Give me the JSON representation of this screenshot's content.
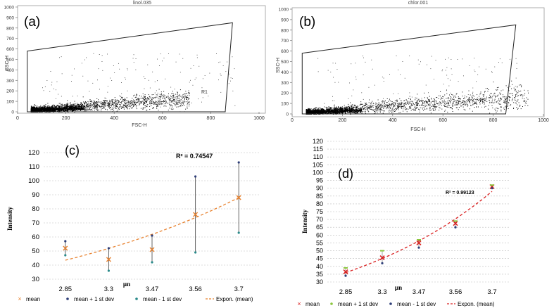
{
  "chart_data": [
    {
      "panel": "a",
      "type": "scatter",
      "panel_label": "(a)",
      "title": "linol.035",
      "xlabel": "FSC-H",
      "ylabel": "SSC-H",
      "xlim": [
        0,
        1000
      ],
      "ylim": [
        0,
        1000
      ],
      "x_ticks": [
        "0",
        "200",
        "400",
        "600",
        "800",
        "1000"
      ],
      "y_ticks": [
        "0",
        "100",
        "200",
        "300",
        "400",
        "500",
        "600",
        "700",
        "800",
        "900",
        "1000"
      ],
      "gate_label": "R1",
      "gate_polygon": [
        [
          40,
          580
        ],
        [
          890,
          850
        ],
        [
          860,
          0
        ],
        [
          40,
          0
        ]
      ]
    },
    {
      "panel": "b",
      "type": "scatter",
      "panel_label": "(b)",
      "title": "chlor.001",
      "xlabel": "FSC-H",
      "ylabel": "SSC-H",
      "xlim": [
        0,
        1000
      ],
      "ylim": [
        0,
        1000
      ],
      "x_ticks": [
        "0",
        "200",
        "400",
        "600",
        "800",
        "1000"
      ],
      "y_ticks": [
        "0",
        "100",
        "200",
        "300",
        "400",
        "500",
        "600",
        "700",
        "800",
        "900",
        "1000"
      ],
      "gate_label": "R1",
      "gate_polygon": [
        [
          40,
          580
        ],
        [
          890,
          850
        ],
        [
          850,
          0
        ],
        [
          40,
          0
        ]
      ]
    },
    {
      "panel": "c",
      "type": "scatter",
      "panel_label": "(c)",
      "xlabel": "µn",
      "ylabel": "Intensity",
      "categories": [
        "2.85",
        "3.3",
        "3.47",
        "3.56",
        "3.7"
      ],
      "ylim": [
        30,
        120
      ],
      "y_ticks": [
        "30",
        "40",
        "50",
        "60",
        "70",
        "80",
        "90",
        "100",
        "110",
        "120"
      ],
      "series": [
        {
          "name": "mean",
          "values": [
            52,
            44,
            51,
            76,
            88
          ],
          "color": "#e8822f"
        },
        {
          "name": "mean + 1 st dev",
          "values": [
            57,
            52,
            61,
            103,
            113
          ],
          "color": "#2e3e78"
        },
        {
          "name": "mean - 1 st dev",
          "values": [
            47,
            36,
            42,
            49,
            63
          ],
          "color": "#2a8a8a"
        }
      ],
      "trendline": {
        "name": "Expon. (mean)",
        "values": [
          43.5,
          50.5,
          59,
          70.5,
          88
        ],
        "color": "#e8822f"
      },
      "annotation": "R² = 0.74547",
      "legend": [
        "mean",
        "mean + 1 st dev",
        "mean - 1 st dev",
        "Expon. (mean)"
      ]
    },
    {
      "panel": "d",
      "type": "scatter",
      "panel_label": "(d)",
      "xlabel": "µn",
      "ylabel": "Intensity",
      "categories": [
        "2.85",
        "3.3",
        "3.47",
        "3.56",
        "3.7"
      ],
      "ylim": [
        30,
        120
      ],
      "y_ticks": [
        "30",
        "35",
        "40",
        "45",
        "50",
        "55",
        "60",
        "65",
        "70",
        "75",
        "80",
        "85",
        "90",
        "95",
        "100",
        "105",
        "110",
        "115",
        "120"
      ],
      "series": [
        {
          "name": "mean",
          "values": [
            36.5,
            45.5,
            55,
            67.5,
            91
          ],
          "color": "#d92020"
        },
        {
          "name": "mean + 1 st dev",
          "values": [
            39,
            50,
            57,
            69,
            92
          ],
          "color": "#8cc63f"
        },
        {
          "name": "mean - 1 st dev",
          "values": [
            34,
            42,
            52,
            65,
            90
          ],
          "color": "#2e3e78"
        }
      ],
      "trendline": {
        "name": "Expon. (mean)",
        "values": [
          36,
          45.5,
          53.5,
          65,
          88
        ],
        "color": "#d92020"
      },
      "annotation": "R² = 0.99123",
      "legend": [
        "mean",
        "mean + 1 st dev",
        "mean - 1 st dev",
        "Expon. (mean)"
      ]
    }
  ]
}
